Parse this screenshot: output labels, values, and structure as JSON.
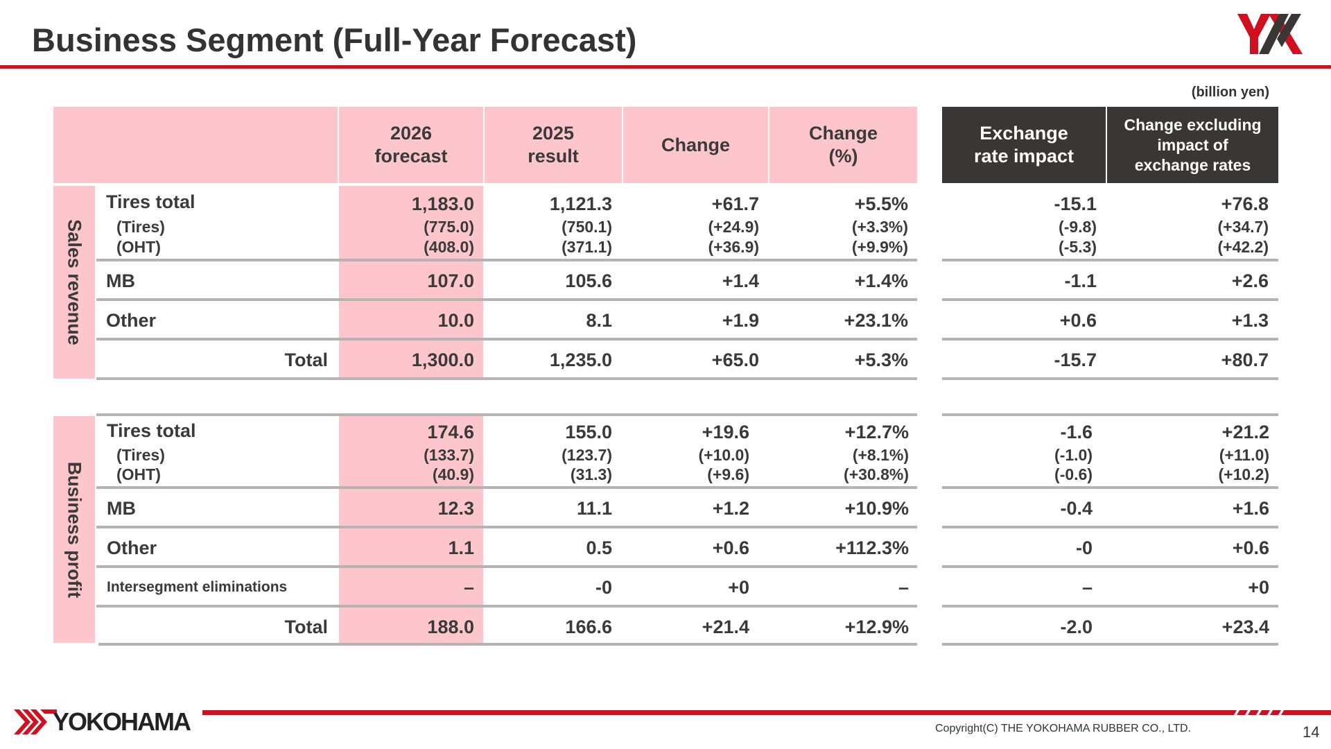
{
  "header": {
    "title": "Business Segment (Full-Year Forecast)",
    "unit": "(billion yen)",
    "logo_text": "YX"
  },
  "columns": {
    "forecast": "2026\nforecast",
    "result": "2025\nresult",
    "change": "Change",
    "change_pct": "Change\n(%)",
    "fx_impact": "Exchange\nrate impact",
    "ex_fx": "Change excluding\nimpact of\nexchange rates"
  },
  "sales_revenue": {
    "section_label": "Sales revenue",
    "rows": [
      {
        "label": "Tires total",
        "sub1_label": "(Tires)",
        "sub2_label": "(OHT)",
        "forecast": [
          "1,183.0",
          "(775.0)",
          "(408.0)"
        ],
        "result": [
          "1,121.3",
          "(750.1)",
          "(371.1)"
        ],
        "change": [
          "+61.7",
          "(+24.9)",
          "(+36.9)"
        ],
        "change_pct": [
          "+5.5%",
          "(+3.3%)",
          "(+9.9%)"
        ],
        "fx_impact": [
          "-15.1",
          "(-9.8)",
          "(-5.3)"
        ],
        "ex_fx": [
          "+76.8",
          "(+34.7)",
          "(+42.2)"
        ]
      },
      {
        "label": "MB",
        "forecast": "107.0",
        "result": "105.6",
        "change": "+1.4",
        "change_pct": "+1.4%",
        "fx_impact": "-1.1",
        "ex_fx": "+2.6"
      },
      {
        "label": "Other",
        "forecast": "10.0",
        "result": "8.1",
        "change": "+1.9",
        "change_pct": "+23.1%",
        "fx_impact": "+0.6",
        "ex_fx": "+1.3"
      },
      {
        "label": "Total",
        "forecast": "1,300.0",
        "result": "1,235.0",
        "change": "+65.0",
        "change_pct": "+5.3%",
        "fx_impact": "-15.7",
        "ex_fx": "+80.7"
      }
    ]
  },
  "business_profit": {
    "section_label": "Business profit",
    "rows": [
      {
        "label": "Tires total",
        "sub1_label": "(Tires)",
        "sub2_label": "(OHT)",
        "forecast": [
          "174.6",
          "(133.7)",
          "(40.9)"
        ],
        "result": [
          "155.0",
          "(123.7)",
          "(31.3)"
        ],
        "change": [
          "+19.6",
          "(+10.0)",
          "(+9.6)"
        ],
        "change_pct": [
          "+12.7%",
          "(+8.1%)",
          "(+30.8%)"
        ],
        "fx_impact": [
          "-1.6",
          "(-1.0)",
          "(-0.6)"
        ],
        "ex_fx": [
          "+21.2",
          "(+11.0)",
          "(+10.2)"
        ]
      },
      {
        "label": "MB",
        "forecast": "12.3",
        "result": "11.1",
        "change": "+1.2",
        "change_pct": "+10.9%",
        "fx_impact": "-0.4",
        "ex_fx": "+1.6"
      },
      {
        "label": "Other",
        "forecast": "1.1",
        "result": "0.5",
        "change": "+0.6",
        "change_pct": "+112.3%",
        "fx_impact": "-0",
        "ex_fx": "+0.6"
      },
      {
        "label": "Intersegment eliminations",
        "forecast": "–",
        "result": "-0",
        "change": "+0",
        "change_pct": "–",
        "fx_impact": "–",
        "ex_fx": "+0"
      },
      {
        "label": "Total",
        "forecast": "188.0",
        "result": "166.6",
        "change": "+21.4",
        "change_pct": "+12.9%",
        "fx_impact": "-2.0",
        "ex_fx": "+23.4"
      }
    ]
  },
  "footer": {
    "brand": "YOKOHAMA",
    "copyright": "Copyright(C) THE YOKOHAMA RUBBER CO., LTD.",
    "page_number": "14"
  },
  "colors": {
    "accent_red": "#d0101f",
    "header_pink": "#fcc6cc",
    "header_dark": "#3a3635",
    "rule_gray": "#b7b3b4"
  }
}
